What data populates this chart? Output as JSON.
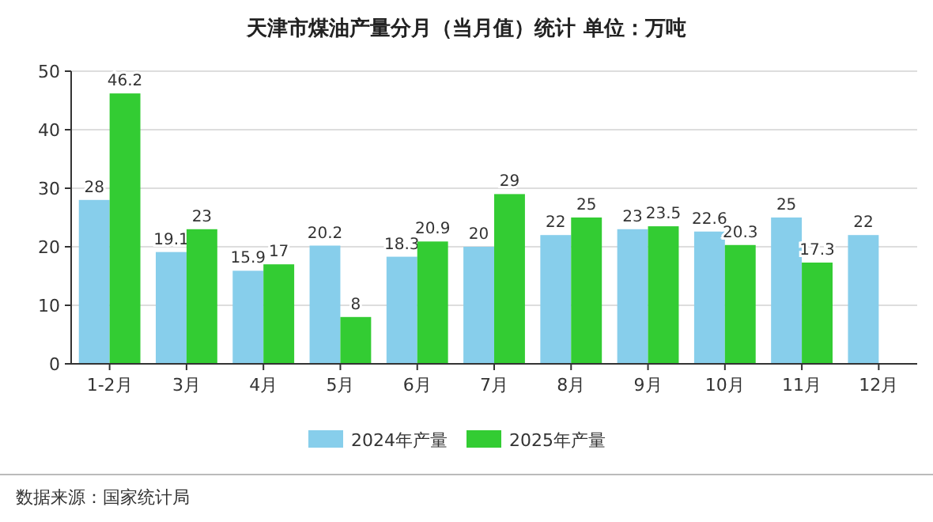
{
  "chart_data": {
    "type": "bar",
    "title": "天津市煤油产量分月（当月值）统计  单位：万吨",
    "categories": [
      "1-2月",
      "3月",
      "4月",
      "5月",
      "6月",
      "7月",
      "8月",
      "9月",
      "10月",
      "11月",
      "12月"
    ],
    "series": [
      {
        "name": "2024年产量",
        "color": "#87ceeb",
        "values": [
          28,
          19.1,
          15.9,
          20.2,
          18.3,
          20,
          22,
          23,
          22.6,
          25,
          22
        ]
      },
      {
        "name": "2025年产量",
        "color": "#33cc33",
        "values": [
          46.2,
          23,
          17,
          8,
          20.9,
          29,
          25,
          23.5,
          20.3,
          17.3,
          null
        ]
      }
    ],
    "ylim": [
      0,
      50
    ],
    "yticks": [
      0,
      10,
      20,
      30,
      40,
      50
    ],
    "grid": "y",
    "legend": "bottom",
    "data_labels": true,
    "annotations": [
      "数据来源：国家统计局"
    ]
  }
}
